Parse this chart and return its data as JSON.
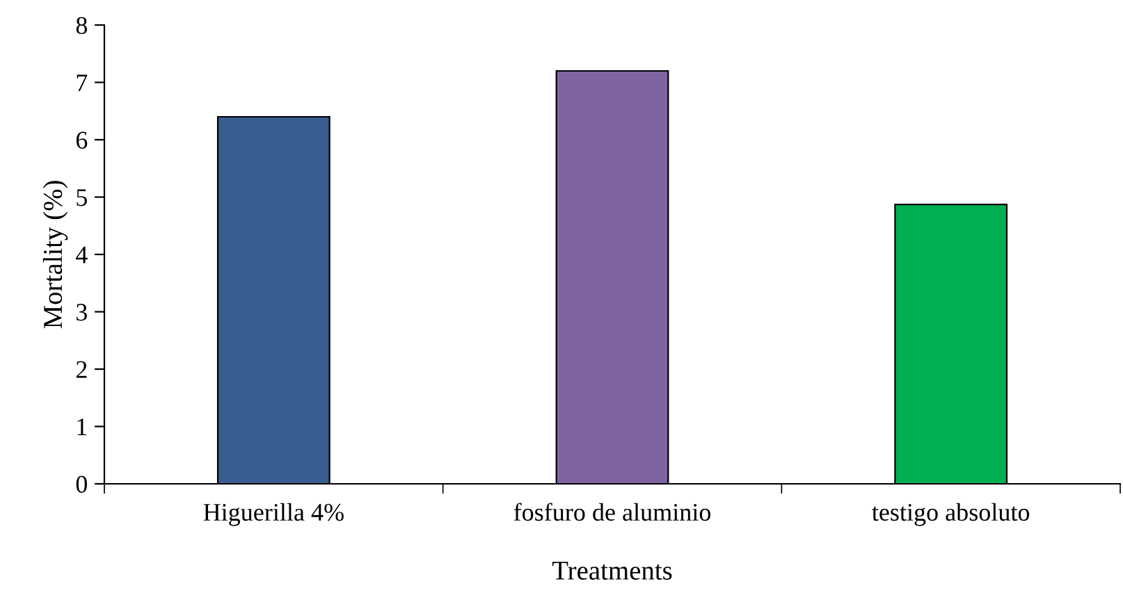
{
  "chart_data": {
    "type": "bar",
    "xlabel": "Treatments",
    "ylabel": "Mortality (%)",
    "categories": [
      "Higuerilla 4%",
      "fosfuro de aluminio",
      "testigo absoluto"
    ],
    "values": [
      6.4,
      7.2,
      4.87
    ],
    "colors": [
      "#375e8e",
      "#8064a2",
      "#00b050"
    ],
    "ylim": [
      0,
      8
    ],
    "yticks": [
      0,
      1,
      2,
      3,
      4,
      5,
      6,
      7,
      8
    ],
    "grid": false,
    "legend": false
  }
}
